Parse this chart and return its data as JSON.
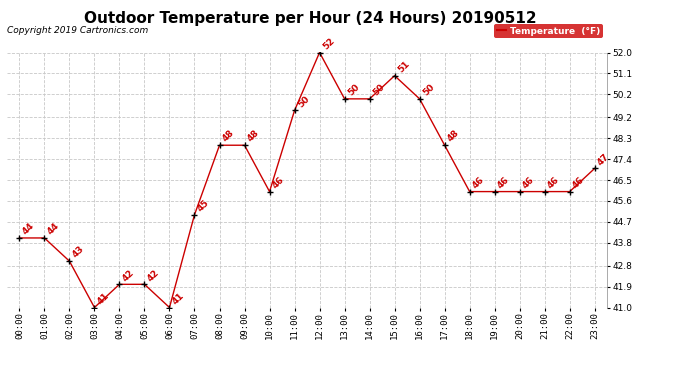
{
  "title": "Outdoor Temperature per Hour (24 Hours) 20190512",
  "copyright": "Copyright 2019 Cartronics.com",
  "legend_label": "Temperature  (°F)",
  "hours": [
    "00:00",
    "01:00",
    "02:00",
    "03:00",
    "04:00",
    "05:00",
    "06:00",
    "07:00",
    "08:00",
    "09:00",
    "10:00",
    "11:00",
    "12:00",
    "13:00",
    "14:00",
    "15:00",
    "16:00",
    "17:00",
    "18:00",
    "19:00",
    "20:00",
    "21:00",
    "22:00",
    "23:00"
  ],
  "temps": [
    44,
    44,
    43,
    41,
    42,
    42,
    41,
    45,
    48,
    48,
    46,
    49.5,
    52,
    50,
    50,
    51,
    50,
    48,
    46,
    46,
    46,
    46,
    46,
    47
  ],
  "labels": [
    "44",
    "44",
    "43",
    "41",
    "42",
    "42",
    "41",
    "45",
    "48",
    "48",
    "46",
    "50",
    "52",
    "50",
    "50",
    "51",
    "50",
    "48",
    "46",
    "46",
    "46",
    "46",
    "46",
    "47"
  ],
  "line_color": "#cc0000",
  "marker_color": "#000000",
  "label_color": "#cc0000",
  "background_color": "#ffffff",
  "grid_color": "#c8c8c8",
  "ylim_min": 41.0,
  "ylim_max": 52.0,
  "yticks": [
    41.0,
    41.9,
    42.8,
    43.8,
    44.7,
    45.6,
    46.5,
    47.4,
    48.3,
    49.2,
    50.2,
    51.1,
    52.0
  ],
  "legend_bg": "#cc0000",
  "legend_text_color": "#ffffff",
  "title_fontsize": 11,
  "label_fontsize": 6.5,
  "tick_fontsize": 6.5,
  "copyright_fontsize": 6.5
}
